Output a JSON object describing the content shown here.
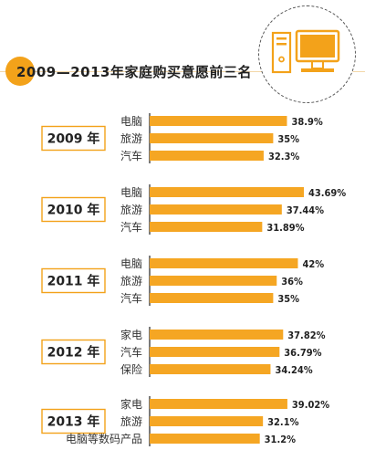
{
  "title": "2009—2013年家庭购买意愿前三名",
  "colors": {
    "accent": "#f3a21a",
    "bar": "#f5a623",
    "text": "#222222",
    "axis": "#333333",
    "year_box_border": "#f3a21a"
  },
  "icon": "computer-icon",
  "chart_data": {
    "type": "bar",
    "orientation": "horizontal",
    "xlim": [
      0,
      45
    ],
    "groups": [
      {
        "label": "2009 年",
        "items": [
          {
            "category": "电脑",
            "value": 38.9,
            "label": "38.9%"
          },
          {
            "category": "旅游",
            "value": 35,
            "label": "35%"
          },
          {
            "category": "汽车",
            "value": 32.3,
            "label": "32.3%"
          }
        ]
      },
      {
        "label": "2010 年",
        "items": [
          {
            "category": "电脑",
            "value": 43.69,
            "label": "43.69%"
          },
          {
            "category": "旅游",
            "value": 37.44,
            "label": "37.44%"
          },
          {
            "category": "汽车",
            "value": 31.89,
            "label": "31.89%"
          }
        ]
      },
      {
        "label": "2011 年",
        "items": [
          {
            "category": "电脑",
            "value": 42,
            "label": "42%"
          },
          {
            "category": "旅游",
            "value": 36,
            "label": "36%"
          },
          {
            "category": "汽车",
            "value": 35,
            "label": "35%"
          }
        ]
      },
      {
        "label": "2012 年",
        "items": [
          {
            "category": "家电",
            "value": 37.82,
            "label": "37.82%"
          },
          {
            "category": "汽车",
            "value": 36.79,
            "label": "36.79%"
          },
          {
            "category": "保险",
            "value": 34.24,
            "label": "34.24%"
          }
        ]
      },
      {
        "label": "2013 年",
        "items": [
          {
            "category": "家电",
            "value": 39.02,
            "label": "39.02%"
          },
          {
            "category": "旅游",
            "value": 32.1,
            "label": "32.1%"
          },
          {
            "category": "电脑等数码产品",
            "value": 31.2,
            "label": "31.2%"
          }
        ]
      }
    ]
  }
}
